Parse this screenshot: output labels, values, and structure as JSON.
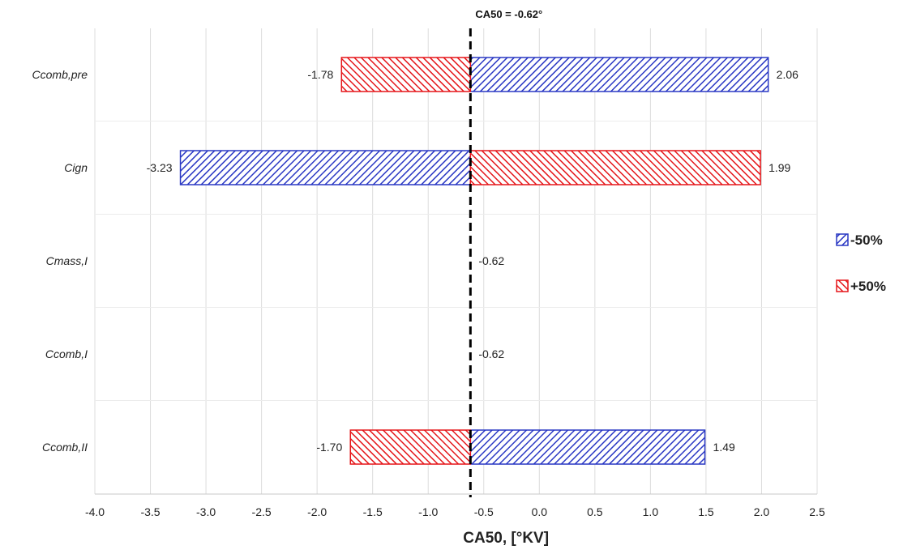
{
  "chart_data": {
    "type": "bar",
    "orientation": "horizontal",
    "chart_kind": "tornado",
    "title": "",
    "xlabel": "CA50, [°KV]",
    "ylabel": "",
    "xlim": [
      -4.0,
      2.5
    ],
    "x_ticks": [
      "-4.0",
      "-3.5",
      "-3.0",
      "-2.5",
      "-2.0",
      "-1.5",
      "-1.0",
      "-0.5",
      "0.0",
      "0.5",
      "1.0",
      "1.5",
      "2.0",
      "2.5"
    ],
    "grid": "vertical",
    "legend_position": "right",
    "baseline": {
      "value": -0.62,
      "label": "CA50 = -0.62°",
      "style": "dashed"
    },
    "categories": [
      "Ccomb,pre",
      "Cign",
      "Cmass,I",
      "Ccomb,I",
      "Ccomb,II"
    ],
    "series": [
      {
        "name": "-50%",
        "color": "#2a38c4",
        "hatch": "forward-diagonal",
        "values": [
          2.06,
          -3.23,
          -0.62,
          -0.62,
          1.49
        ],
        "labels": [
          "2.06",
          "-3.23",
          "-0.62",
          "-0.62",
          "1.49"
        ]
      },
      {
        "name": "+50%",
        "color": "#e5161a",
        "hatch": "backward-diagonal",
        "values": [
          -1.78,
          1.99,
          -0.62,
          -0.62,
          -1.7
        ],
        "labels": [
          "-1.78",
          "1.99",
          "",
          "",
          "-1.70"
        ]
      }
    ]
  }
}
